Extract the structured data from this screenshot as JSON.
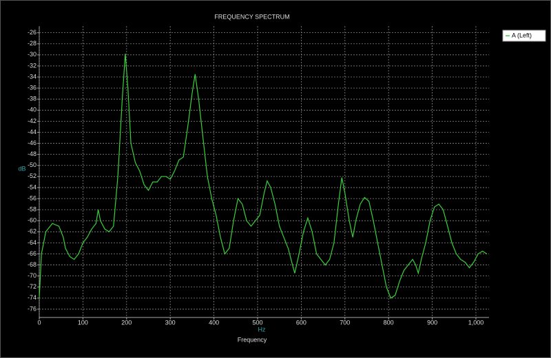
{
  "chart_data": {
    "type": "line",
    "title": "FREQUENCY SPECTRUM",
    "x_label": "Frequency",
    "x_unit": "Hz",
    "y_label": "dB",
    "x": [
      0,
      5,
      15,
      30,
      45,
      55,
      60,
      70,
      80,
      90,
      100,
      110,
      120,
      130,
      135,
      140,
      150,
      160,
      170,
      180,
      190,
      197,
      203,
      210,
      220,
      230,
      240,
      250,
      260,
      270,
      280,
      290,
      300,
      310,
      320,
      330,
      340,
      350,
      357,
      365,
      375,
      385,
      395,
      405,
      415,
      425,
      435,
      445,
      455,
      465,
      475,
      485,
      495,
      505,
      515,
      522,
      530,
      540,
      550,
      560,
      570,
      580,
      585,
      595,
      605,
      615,
      625,
      635,
      645,
      655,
      665,
      675,
      685,
      693,
      700,
      710,
      718,
      725,
      735,
      745,
      755,
      765,
      775,
      785,
      795,
      805,
      815,
      825,
      835,
      845,
      855,
      862,
      868,
      875,
      885,
      895,
      905,
      915,
      925,
      935,
      945,
      955,
      965,
      975,
      985,
      995,
      1005,
      1015,
      1025
    ],
    "series": [
      {
        "name": "A (Left)",
        "color": "#3ad13a",
        "values": [
          -74,
          -66,
          -62,
          -60.5,
          -61,
          -63,
          -65,
          -66.5,
          -67,
          -66,
          -64,
          -63,
          -61.5,
          -60.5,
          -58,
          -60,
          -61.5,
          -62,
          -61,
          -52,
          -38,
          -29.8,
          -36,
          -46,
          -49.5,
          -51,
          -53.5,
          -54.5,
          -53,
          -53,
          -52,
          -52,
          -52.5,
          -51,
          -49,
          -48.5,
          -43,
          -37,
          -33.5,
          -38,
          -45,
          -52,
          -56,
          -59,
          -63,
          -66,
          -65,
          -60,
          -56,
          -57,
          -60,
          -61,
          -60,
          -59,
          -55,
          -52.8,
          -54,
          -57,
          -61,
          -63,
          -65,
          -68,
          -69.5,
          -66,
          -62,
          -59.5,
          -62,
          -66,
          -67,
          -68,
          -67,
          -64,
          -57,
          -52.2,
          -55,
          -60,
          -63,
          -60,
          -57,
          -55.8,
          -56.5,
          -60,
          -64,
          -68,
          -72,
          -74,
          -73.5,
          -71,
          -69,
          -68,
          -67,
          -68,
          -69.5,
          -67,
          -64,
          -60,
          -57.5,
          -57,
          -58,
          -61,
          -64,
          -66,
          -67,
          -67.5,
          -68.5,
          -67.5,
          -66,
          -65.5,
          -66
        ]
      }
    ],
    "xlim": [
      0,
      1030
    ],
    "ylim": [
      -77.5,
      -24.8
    ],
    "xticks": [
      0,
      100,
      200,
      300,
      400,
      500,
      600,
      700,
      800,
      900,
      {
        "value": 1000,
        "label": "1,000"
      }
    ],
    "yticks": [
      -26,
      -28,
      -30,
      -32,
      -34,
      -36,
      -38,
      -40,
      -42,
      -44,
      -46,
      -48,
      -50,
      -52,
      -54,
      -56,
      -58,
      -60,
      -62,
      -64,
      -66,
      -68,
      -70,
      -72,
      -74,
      -76
    ],
    "grid": true,
    "legend": "right"
  }
}
